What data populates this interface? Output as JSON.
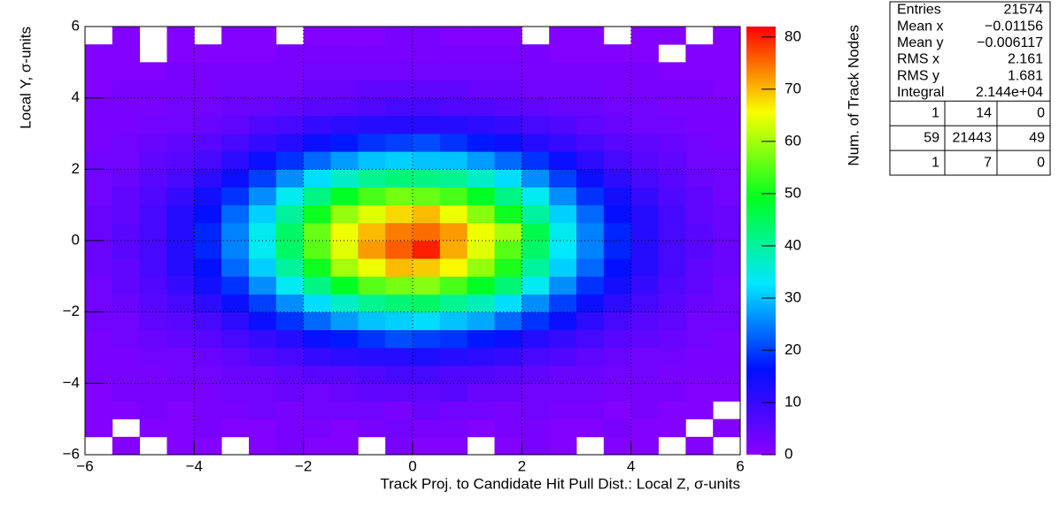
{
  "chart_data": {
    "type": "heatmap",
    "xlabel": "Track Proj. to Candidate Hit Pull Dist.: Local Z, σ-units",
    "ylabel": "Local Y, σ-units",
    "zlabel": "Num. of Track Nodes",
    "xlim": [
      -6,
      6
    ],
    "ylim": [
      -6,
      6
    ],
    "zlim": [
      0,
      82
    ],
    "xticks": [
      {
        "value": -6,
        "label": "−6"
      },
      {
        "value": -4,
        "label": "−4"
      },
      {
        "value": -2,
        "label": "−2"
      },
      0,
      2,
      4,
      6
    ],
    "yticks": [
      {
        "value": -6,
        "label": "−6"
      },
      {
        "value": -4,
        "label": "−4"
      },
      {
        "value": -2,
        "label": "−2"
      },
      0,
      2,
      4,
      6
    ],
    "zticks": [
      0,
      10,
      20,
      30,
      40,
      50,
      60,
      70,
      80
    ],
    "grid": true,
    "palette": [
      "#8a00ff",
      "#0010ff",
      "#00e8ff",
      "#00ff20",
      "#f8ff00",
      "#ff0000"
    ],
    "xbins": [
      -6,
      -5.5,
      -5,
      -4.5,
      -4,
      -3.5,
      -3,
      -2.5,
      -2,
      -1.5,
      -1,
      -0.5,
      0,
      0.5,
      1,
      1.5,
      2,
      2.5,
      3,
      3.5,
      4,
      4.5,
      5,
      5.5,
      6
    ],
    "ybins": [
      -6,
      -5.5,
      -5,
      -4.5,
      -4,
      -3.5,
      -3,
      -2.5,
      -2,
      -1.5,
      -1,
      -0.5,
      0,
      0.5,
      1,
      1.5,
      2,
      2.5,
      3,
      3.5,
      4,
      4.5,
      5,
      5.5,
      6
    ],
    "z": [
      [
        0,
        1,
        0,
        1,
        1,
        0,
        1,
        2,
        1,
        1,
        0,
        2,
        1,
        1,
        0,
        1,
        2,
        1,
        0,
        1,
        1,
        0,
        1,
        0
      ],
      [
        1,
        0,
        1,
        1,
        2,
        1,
        1,
        2,
        2,
        1,
        2,
        3,
        2,
        2,
        1,
        2,
        2,
        1,
        1,
        2,
        1,
        1,
        0,
        1
      ],
      [
        1,
        1,
        2,
        1,
        2,
        2,
        3,
        2,
        3,
        3,
        3,
        2,
        4,
        3,
        3,
        2,
        3,
        2,
        2,
        1,
        2,
        1,
        1,
        0
      ],
      [
        1,
        2,
        2,
        2,
        2,
        3,
        3,
        4,
        3,
        4,
        5,
        5,
        5,
        6,
        4,
        4,
        3,
        3,
        3,
        2,
        2,
        2,
        1,
        1
      ],
      [
        2,
        2,
        2,
        3,
        3,
        4,
        4,
        5,
        6,
        6,
        7,
        8,
        8,
        7,
        7,
        6,
        5,
        4,
        4,
        3,
        3,
        2,
        2,
        2
      ],
      [
        2,
        2,
        3,
        3,
        4,
        5,
        7,
        8,
        10,
        11,
        12,
        12,
        13,
        12,
        11,
        10,
        8,
        7,
        5,
        4,
        3,
        3,
        2,
        2
      ],
      [
        2,
        3,
        4,
        5,
        6,
        8,
        10,
        12,
        15,
        17,
        19,
        21,
        20,
        19,
        17,
        15,
        12,
        10,
        8,
        6,
        5,
        4,
        3,
        2
      ],
      [
        3,
        3,
        5,
        6,
        8,
        11,
        15,
        19,
        23,
        27,
        30,
        31,
        32,
        30,
        28,
        23,
        19,
        15,
        11,
        8,
        6,
        5,
        3,
        3
      ],
      [
        3,
        4,
        6,
        8,
        11,
        15,
        20,
        26,
        32,
        37,
        41,
        43,
        44,
        41,
        38,
        32,
        26,
        20,
        15,
        11,
        8,
        6,
        4,
        3
      ],
      [
        3,
        5,
        7,
        10,
        14,
        19,
        26,
        34,
        42,
        49,
        55,
        57,
        58,
        54,
        49,
        43,
        34,
        26,
        19,
        14,
        10,
        7,
        5,
        3
      ],
      [
        4,
        5,
        8,
        12,
        16,
        23,
        31,
        40,
        50,
        60,
        65,
        70,
        69,
        66,
        59,
        51,
        40,
        31,
        23,
        16,
        12,
        8,
        5,
        4
      ],
      [
        4,
        6,
        8,
        12,
        18,
        25,
        34,
        44,
        55,
        64,
        72,
        76,
        80,
        71,
        64,
        55,
        44,
        33,
        25,
        18,
        12,
        8,
        6,
        4
      ],
      [
        4,
        6,
        8,
        12,
        18,
        25,
        34,
        44,
        56,
        65,
        70,
        74,
        75,
        72,
        65,
        60,
        46,
        34,
        25,
        18,
        12,
        8,
        6,
        4
      ],
      [
        4,
        5,
        8,
        12,
        16,
        23,
        31,
        40,
        50,
        59,
        64,
        68,
        70,
        65,
        58,
        50,
        40,
        31,
        23,
        16,
        12,
        8,
        5,
        4
      ],
      [
        3,
        5,
        7,
        10,
        14,
        19,
        26,
        34,
        42,
        49,
        54,
        57,
        56,
        54,
        49,
        42,
        34,
        26,
        19,
        14,
        10,
        7,
        5,
        3
      ],
      [
        3,
        4,
        6,
        8,
        11,
        15,
        20,
        26,
        32,
        37,
        41,
        43,
        42,
        41,
        37,
        32,
        26,
        20,
        15,
        11,
        8,
        6,
        4,
        3
      ],
      [
        3,
        3,
        5,
        6,
        8,
        11,
        15,
        19,
        23,
        27,
        30,
        31,
        30,
        30,
        27,
        23,
        19,
        15,
        11,
        8,
        6,
        5,
        3,
        3
      ],
      [
        2,
        3,
        4,
        5,
        6,
        8,
        10,
        12,
        15,
        17,
        19,
        20,
        21,
        19,
        17,
        15,
        12,
        10,
        8,
        6,
        5,
        4,
        3,
        2
      ],
      [
        2,
        2,
        3,
        3,
        4,
        5,
        7,
        8,
        10,
        11,
        12,
        12,
        12,
        12,
        11,
        10,
        8,
        7,
        5,
        4,
        3,
        3,
        2,
        2
      ],
      [
        2,
        2,
        2,
        3,
        3,
        4,
        4,
        5,
        6,
        6,
        7,
        8,
        8,
        7,
        7,
        6,
        5,
        4,
        4,
        3,
        3,
        2,
        2,
        2
      ],
      [
        1,
        2,
        2,
        2,
        2,
        3,
        3,
        3,
        4,
        4,
        5,
        5,
        5,
        5,
        4,
        4,
        3,
        3,
        3,
        2,
        2,
        2,
        2,
        1
      ],
      [
        1,
        1,
        1,
        2,
        2,
        2,
        2,
        2,
        3,
        3,
        3,
        3,
        3,
        3,
        3,
        3,
        2,
        2,
        2,
        2,
        2,
        1,
        1,
        1
      ],
      [
        1,
        1,
        0,
        1,
        1,
        1,
        1,
        2,
        2,
        2,
        2,
        2,
        2,
        2,
        2,
        2,
        2,
        1,
        1,
        1,
        1,
        0,
        1,
        1
      ],
      [
        0,
        1,
        0,
        1,
        0,
        1,
        1,
        0,
        1,
        1,
        1,
        2,
        2,
        1,
        1,
        1,
        0,
        1,
        1,
        0,
        1,
        1,
        0,
        1
      ]
    ],
    "stats": [
      {
        "label": "Entries",
        "value": "21574"
      },
      {
        "label": "Mean x",
        "value": "−0.01156"
      },
      {
        "label": "Mean y",
        "value": "−0.006117"
      },
      {
        "label": "RMS x",
        "value": "2.161"
      },
      {
        "label": "RMS y",
        "value": "1.681"
      },
      {
        "label": "Integral",
        "value": "2.144e+04"
      }
    ],
    "overflow": [
      [
        1,
        14,
        0
      ],
      [
        59,
        21443,
        49
      ],
      [
        1,
        7,
        0
      ]
    ]
  }
}
